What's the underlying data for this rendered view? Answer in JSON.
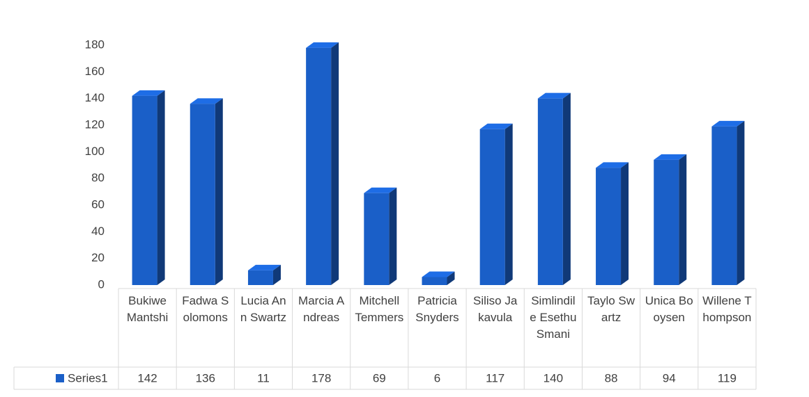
{
  "chart_data": {
    "type": "bar3d",
    "categories": [
      "Bukiwe Mantshi",
      "Fadwa Solomons",
      "Lucia Ann Swartz",
      "Marcia Andreas",
      "Mitchell Temmers",
      "Patricia Snyders",
      "Siliso Jakavula",
      "Simlindile Esethu Smani",
      "Taylo Swartz",
      "Unica Booysen",
      "Willene Thompson"
    ],
    "series": [
      {
        "name": "Series1",
        "color": "#1a5fc8",
        "values": [
          142,
          136,
          11,
          178,
          69,
          6,
          117,
          140,
          88,
          94,
          119
        ]
      }
    ],
    "ylim": [
      0,
      180
    ],
    "yticks": [
      0,
      20,
      40,
      60,
      80,
      100,
      120,
      140,
      160,
      180
    ],
    "grid": false,
    "data_table": true
  }
}
